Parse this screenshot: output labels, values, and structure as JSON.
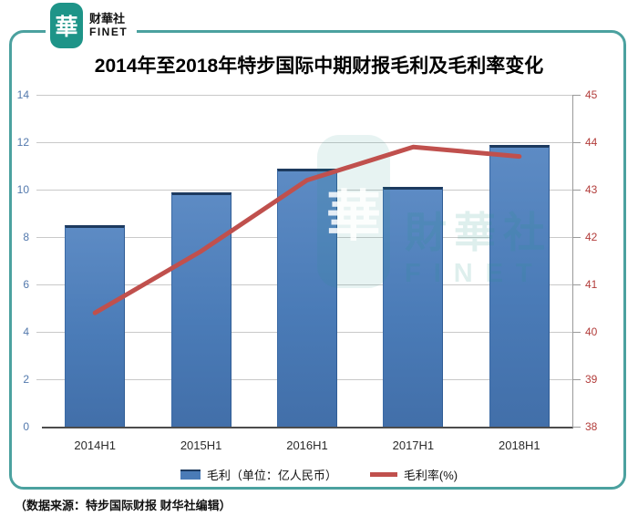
{
  "logo": {
    "seal_char": "華",
    "name": "财華社",
    "subname": "FINET"
  },
  "watermark": {
    "seal_char": "華",
    "name": "財華社",
    "subname": "FINET"
  },
  "source_note": "（数据来源：特步国际财报 财华社编辑）",
  "colors": {
    "bar": "#4a7bb7",
    "bar_top": "#1d3a5f",
    "line": "#c0504d",
    "left_axis_labels": "#5379ad",
    "right_axis_labels": "#b23c3a",
    "gridline": "#c9c9c9",
    "frame_border": "#4ba19f",
    "brand_teal": "#1e9488"
  },
  "chart_data": {
    "type": "bar",
    "title": "2014年至2018年特步国际中期财报毛利及毛利率变化",
    "categories": [
      "2014H1",
      "2015H1",
      "2016H1",
      "2017H1",
      "2018H1"
    ],
    "series": [
      {
        "name": "毛利（单位：亿人民币）",
        "type": "bar",
        "axis": "left",
        "values": [
          8.5,
          9.9,
          10.9,
          10.1,
          11.9
        ]
      },
      {
        "name": "毛利率(%)",
        "type": "line",
        "axis": "right",
        "values": [
          40.4,
          41.7,
          43.2,
          43.9,
          43.7
        ]
      }
    ],
    "left_axis": {
      "min": 0,
      "max": 14,
      "step": 2
    },
    "right_axis": {
      "min": 38,
      "max": 45,
      "step": 1
    },
    "legend_position": "bottom",
    "grid": true
  }
}
